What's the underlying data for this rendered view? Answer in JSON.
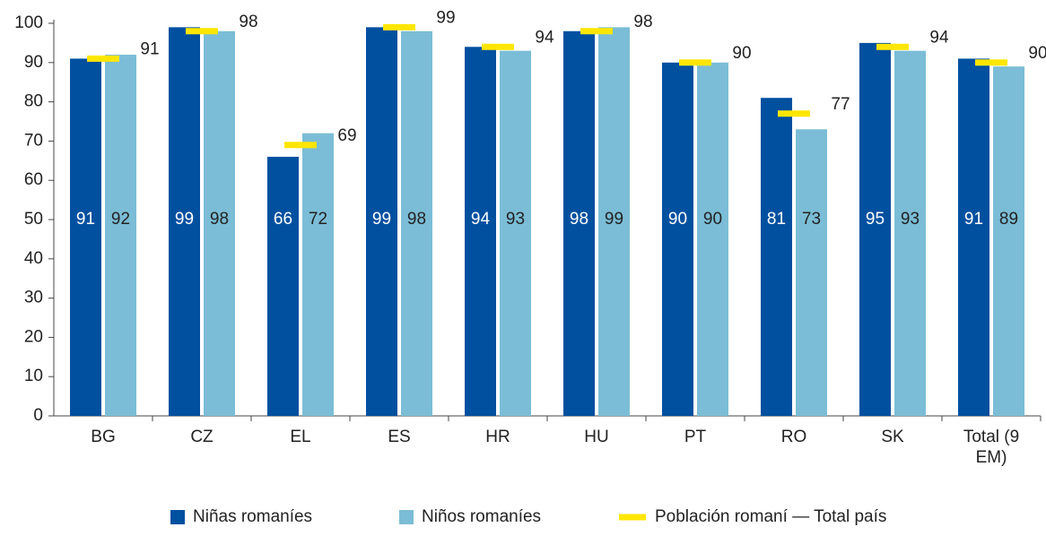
{
  "chart_data": {
    "type": "bar",
    "categories": [
      "BG",
      "CZ",
      "EL",
      "ES",
      "HR",
      "HU",
      "PT",
      "RO",
      "SK",
      "Total (9 EM)"
    ],
    "series": [
      {
        "name": "Niñas romaníes",
        "color": "#0050a0",
        "values": [
          91,
          99,
          66,
          99,
          94,
          98,
          90,
          81,
          95,
          91
        ]
      },
      {
        "name": "Niños romaníes",
        "color": "#7bbdd6",
        "values": [
          92,
          98,
          72,
          98,
          93,
          99,
          90,
          73,
          93,
          89
        ]
      },
      {
        "name": "Población romaní — Total país",
        "color": "#ffe600",
        "values": [
          91,
          98,
          69,
          99,
          94,
          98,
          90,
          77,
          94,
          90
        ]
      }
    ],
    "ylim": [
      0,
      100
    ],
    "yticks": [
      0,
      10,
      20,
      30,
      40,
      50,
      60,
      70,
      80,
      90,
      100
    ]
  }
}
